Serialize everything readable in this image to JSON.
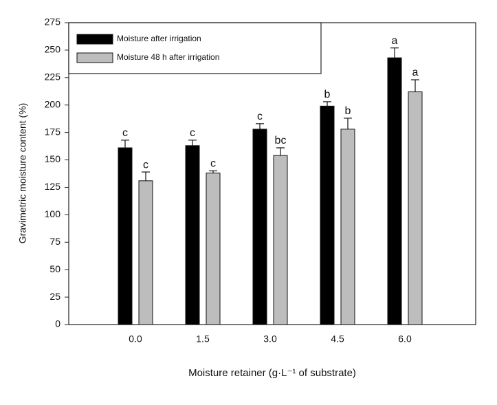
{
  "chart_data": {
    "type": "bar",
    "categories": [
      "0.0",
      "1.5",
      "3.0",
      "4.5",
      "6.0"
    ],
    "series": [
      {
        "name": "Moisture after irrigation",
        "color": "#000000",
        "values": [
          161,
          163,
          178,
          199,
          243
        ],
        "errors": [
          7,
          5,
          5,
          4,
          9
        ],
        "letters": [
          "c",
          "c",
          "c",
          "b",
          "a"
        ]
      },
      {
        "name": "Moisture 48 h after irrigation",
        "color": "#bdbdbd",
        "values": [
          131,
          138,
          154,
          178,
          212
        ],
        "errors": [
          8,
          2,
          7,
          10,
          11
        ],
        "letters": [
          "c",
          "c",
          "bc",
          "b",
          "a"
        ]
      }
    ],
    "ylabel": "Gravimetric moisture content (%)",
    "xlabel": "Moisture retainer (g·L⁻¹ of substrate)",
    "ylim": [
      0,
      275
    ],
    "yticks": [
      0,
      25,
      50,
      75,
      100,
      125,
      150,
      175,
      200,
      225,
      250,
      275
    ],
    "grid": false,
    "legend": "upper left"
  }
}
